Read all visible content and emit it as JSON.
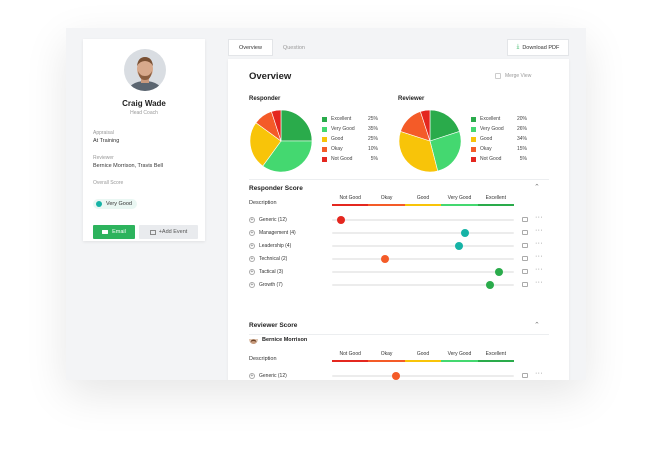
{
  "profile": {
    "name": "Craig Wade",
    "role": "Head Coach",
    "appraisal_label": "Appraisal",
    "appraisal_value": "At Training",
    "reviewer_label": "Reviewer",
    "reviewer_value": "Bernice Morrison, Travis Bell",
    "overall_label": "Overall Score",
    "overall_value": "Very Good",
    "email_button": "Email",
    "add_event_button": "+Add Event"
  },
  "tabs": [
    {
      "label": "Overview",
      "active": true
    },
    {
      "label": "Question",
      "active": false
    }
  ],
  "download_button": "Download PDF",
  "overview": {
    "title": "Overview",
    "merge_view_label": "Merge View",
    "merge_view_checked": false
  },
  "colors": {
    "excellent": "#2aab4b",
    "very_good": "#44d870",
    "good": "#f8c409",
    "okay": "#f45b28",
    "not_good": "#e4271f",
    "score_teal": "#16b3a6"
  },
  "responder_pie": {
    "title": "Responder",
    "slices": [
      {
        "label": "Excellent",
        "value": "25%",
        "color": "#2aab4b"
      },
      {
        "label": "Very Good",
        "value": "35%",
        "color": "#44d870"
      },
      {
        "label": "Good",
        "value": "25%",
        "color": "#f8c409"
      },
      {
        "label": "Okay",
        "value": "10%",
        "color": "#f45b28"
      },
      {
        "label": "Not Good",
        "value": "5%",
        "color": "#e4271f"
      }
    ]
  },
  "reviewer_pie": {
    "title": "Reviewer",
    "slices": [
      {
        "label": "Excellent",
        "value": "20%",
        "color": "#2aab4b"
      },
      {
        "label": "Very Good",
        "value": "26%",
        "color": "#44d870"
      },
      {
        "label": "Good",
        "value": "34%",
        "color": "#f8c409"
      },
      {
        "label": "Okay",
        "value": "15%",
        "color": "#f45b28"
      },
      {
        "label": "Not Good",
        "value": "5%",
        "color": "#e4271f"
      }
    ]
  },
  "scale_labels": [
    "Not Good",
    "Okay",
    "Good",
    "Very Good",
    "Excellent"
  ],
  "responder_score": {
    "title": "Responder Score",
    "description_label": "Description",
    "rows": [
      {
        "label": "Generic (12)",
        "position": 0.05,
        "color": "#e4271f"
      },
      {
        "label": "Management (4)",
        "position": 0.73,
        "color": "#16b3a6"
      },
      {
        "label": "Leadership (4)",
        "position": 0.7,
        "color": "#16b3a6"
      },
      {
        "label": "Technical (2)",
        "position": 0.29,
        "color": "#f45b28"
      },
      {
        "label": "Tactical (3)",
        "position": 0.92,
        "color": "#2aab4b"
      },
      {
        "label": "Growth (7)",
        "position": 0.87,
        "color": "#2aab4b"
      }
    ]
  },
  "reviewer_score": {
    "title": "Reviewer Score",
    "reviewer_name": "Bernice Morrison",
    "description_label": "Description",
    "rows": [
      {
        "label": "Generic (12)",
        "position": 0.35,
        "color": "#f45b28"
      }
    ]
  }
}
